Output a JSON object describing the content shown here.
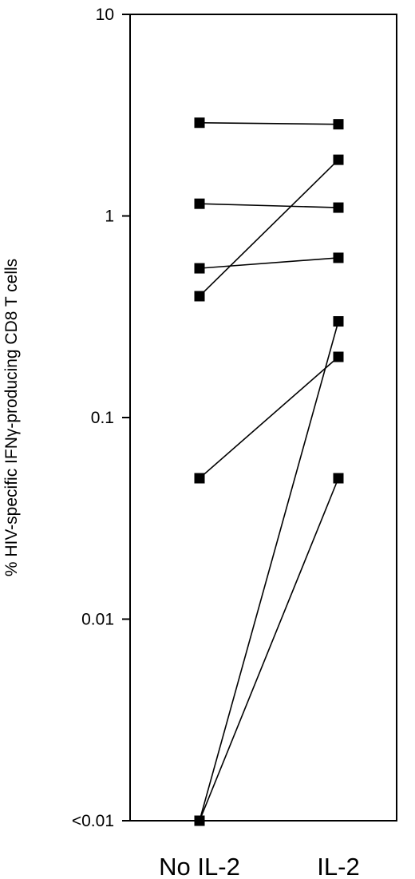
{
  "chart_data": {
    "type": "line",
    "categories": [
      "No IL-2",
      "IL-2"
    ],
    "ylabel": "% HIV-specific IFNγ-producing CD8 T cells",
    "yscale": "log",
    "ylim": [
      0.001,
      10
    ],
    "yticks": [
      {
        "value": 10,
        "label": "10"
      },
      {
        "value": 1,
        "label": "1"
      },
      {
        "value": 0.1,
        "label": "0.1"
      },
      {
        "value": 0.01,
        "label": "0.01"
      },
      {
        "value": 0.001,
        "label": "<0.01"
      }
    ],
    "grid": false,
    "legend": "none",
    "marker": "square",
    "color": "#000000",
    "series": [
      {
        "values": [
          2.9,
          2.85
        ]
      },
      {
        "values": [
          1.15,
          1.1
        ]
      },
      {
        "values": [
          0.55,
          0.62
        ]
      },
      {
        "values": [
          0.4,
          1.9
        ]
      },
      {
        "values": [
          0.05,
          0.2
        ]
      },
      {
        "values": [
          0.001,
          0.3
        ]
      },
      {
        "values": [
          0.001,
          0.05
        ]
      }
    ]
  }
}
